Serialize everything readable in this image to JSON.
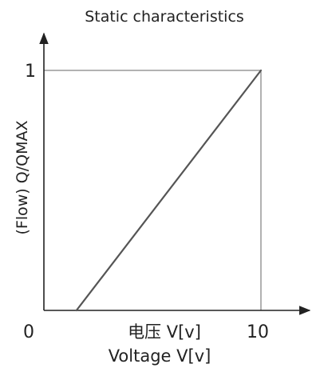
{
  "chart_data": {
    "type": "line",
    "title": "Static characteristics",
    "xlabel_cn": "电压  V[v]",
    "xlabel": "Voltage  V[v]",
    "ylabel": "(Flow) Q/QMAX",
    "x_ticks": [
      {
        "value": 0,
        "label": "0"
      },
      {
        "value": 10,
        "label": "10"
      }
    ],
    "y_ticks": [
      {
        "value": 1,
        "label": "1"
      }
    ],
    "xlim": [
      0,
      11.5
    ],
    "ylim": [
      0,
      1.2
    ],
    "series": [
      {
        "x": [
          1.5,
          10
        ],
        "y": [
          0,
          1
        ]
      }
    ],
    "grid": false,
    "colors": {
      "line": "#555555",
      "axis": "#222222",
      "frame": "#666666"
    }
  }
}
